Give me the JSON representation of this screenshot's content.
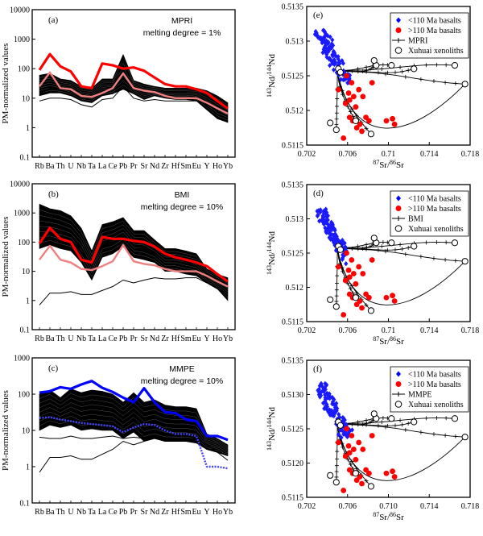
{
  "chart_data": [
    {
      "id": "a",
      "type": "line",
      "panel_label": "(a)",
      "annotation": [
        "MPRI",
        "melting degree = 1%"
      ],
      "ylabel": "PM-normalized values",
      "yscale": "log",
      "ylim": [
        0.1,
        10000
      ],
      "y_ticks": [
        "0.1",
        "1",
        "10",
        "100",
        "1000",
        "10000"
      ],
      "categories": [
        "Rb",
        "Ba",
        "Th",
        "U",
        "Nb",
        "Ta",
        "La",
        "Ce",
        "Pb",
        "Pr",
        "Sr",
        "Nd",
        "Zr",
        "Hf",
        "Sm",
        "Eu",
        "Y",
        "Ho",
        "Yb"
      ],
      "band": {
        "upper": [
          60,
          70,
          45,
          40,
          25,
          22,
          45,
          45,
          300,
          40,
          30,
          25,
          22,
          22,
          22,
          22,
          18,
          12,
          7
        ],
        "lower": [
          12,
          15,
          15,
          12,
          8,
          7,
          12,
          14,
          20,
          14,
          9,
          12,
          10,
          9,
          9,
          8,
          4,
          2,
          1.5
        ]
      },
      "model_lines": [
        [
          14,
          22,
          20,
          18,
          12,
          11,
          18,
          20,
          220,
          22,
          18,
          18,
          16,
          16,
          16,
          16,
          12,
          8,
          5
        ],
        [
          8,
          10,
          10,
          9,
          6,
          5,
          9,
          10,
          25,
          10,
          8,
          9,
          8,
          8,
          8,
          8,
          6,
          4,
          3
        ]
      ],
      "series": [
        {
          "color": "#ff0000",
          "values": [
            90,
            310,
            120,
            80,
            25,
            22,
            150,
            130,
            100,
            110,
            85,
            50,
            30,
            25,
            25,
            20,
            15,
            8,
            4.5
          ]
        },
        {
          "color": "#f08080",
          "values": [
            25,
            75,
            22,
            20,
            12,
            11,
            15,
            22,
            70,
            22,
            18,
            16,
            12,
            10,
            10,
            10,
            7,
            4.5,
            3
          ]
        }
      ]
    },
    {
      "id": "b",
      "type": "line",
      "panel_label": "(b)",
      "annotation": [
        "BMI",
        "melting degree = 10%"
      ],
      "ylabel": "PM-normalized values",
      "yscale": "log",
      "ylim": [
        0.1,
        10000
      ],
      "y_ticks": [
        "0.1",
        "1",
        "10",
        "100",
        "1000",
        "10000"
      ],
      "categories": [
        "Rb",
        "Ba",
        "Th",
        "U",
        "Nb",
        "Ta",
        "La",
        "Ce",
        "Pb",
        "Pr",
        "Sr",
        "Nd",
        "Zr",
        "Hf",
        "Sm",
        "Eu",
        "Y",
        "Ho",
        "Yb"
      ],
      "band": {
        "upper": [
          2000,
          1400,
          1200,
          800,
          300,
          50,
          400,
          500,
          700,
          250,
          250,
          120,
          60,
          60,
          50,
          40,
          12,
          8,
          6
        ],
        "lower": [
          60,
          80,
          60,
          50,
          20,
          5,
          30,
          40,
          70,
          30,
          25,
          20,
          10,
          10,
          8,
          7,
          4,
          2.5,
          1
        ]
      },
      "model_lines": [
        [
          0.7,
          1.8,
          1.8,
          2,
          1.6,
          1.6,
          2.2,
          3,
          5,
          4,
          5,
          6,
          5.5,
          5.5,
          6,
          6,
          4,
          2.5,
          1.5
        ],
        [
          300,
          260,
          220,
          180,
          50,
          15,
          80,
          100,
          160,
          60,
          60,
          40,
          22,
          22,
          20,
          18,
          8,
          5,
          3
        ]
      ],
      "series": [
        {
          "color": "#ff0000",
          "values": [
            90,
            310,
            130,
            100,
            25,
            20,
            150,
            130,
            130,
            110,
            100,
            70,
            40,
            30,
            25,
            20,
            15,
            8,
            4.5
          ]
        },
        {
          "color": "#f08080",
          "values": [
            25,
            75,
            25,
            20,
            12,
            11,
            15,
            22,
            80,
            22,
            18,
            16,
            12,
            10,
            10,
            10,
            7,
            4.5,
            3
          ]
        }
      ]
    },
    {
      "id": "c",
      "type": "line",
      "panel_label": "(c)",
      "annotation": [
        "MMPE",
        "melting degree = 10%"
      ],
      "ylabel": "PM-normalized values",
      "yscale": "log",
      "ylim": [
        0.1,
        1000
      ],
      "y_ticks": [
        "0.1",
        "1",
        "10",
        "100",
        "1000"
      ],
      "categories": [
        "Rb",
        "Ba",
        "Th",
        "U",
        "Nb",
        "Ta",
        "La",
        "Ce",
        "Pb",
        "Pr",
        "Sr",
        "Nd",
        "Zr",
        "Hf",
        "Sm",
        "Eu",
        "Y",
        "Ho",
        "Yb"
      ],
      "band": {
        "upper": [
          100,
          130,
          80,
          140,
          110,
          130,
          120,
          100,
          60,
          110,
          60,
          70,
          50,
          45,
          45,
          40,
          8,
          6,
          4
        ],
        "lower": [
          10,
          14,
          12,
          14,
          10,
          11,
          10,
          10,
          6,
          9,
          5,
          6,
          5,
          5,
          5,
          4.5,
          3,
          2.5,
          2
        ]
      },
      "model_lines": [
        [
          0.7,
          1.8,
          1.8,
          2,
          1.6,
          1.6,
          2.2,
          3,
          5,
          4,
          5,
          6,
          5.5,
          5.5,
          6,
          6,
          4,
          2.5,
          1.5
        ],
        [
          6.5,
          6,
          6,
          7,
          6,
          6,
          6.5,
          7,
          6,
          6.5,
          6,
          6,
          5,
          5,
          5,
          4.5,
          3,
          2.5,
          2
        ]
      ],
      "series": [
        {
          "color": "#0000ff",
          "style": "solid",
          "values": [
            110,
            120,
            155,
            140,
            185,
            230,
            150,
            115,
            80,
            60,
            145,
            60,
            32,
            30,
            20,
            18,
            7,
            7,
            5.5
          ]
        },
        {
          "color": "#4444ff",
          "style": "dashed",
          "values": [
            22,
            23,
            20,
            18,
            16,
            15,
            14,
            13,
            9,
            12,
            15,
            14,
            10,
            8,
            8,
            7,
            1,
            1,
            0.9
          ]
        }
      ]
    },
    {
      "id": "e",
      "type": "scatter",
      "panel_label": "(e)",
      "xlabel": "87Sr/86Sr",
      "ylabel": "143Nd/144Nd",
      "xlim": [
        0.702,
        0.718
      ],
      "ylim": [
        0.5115,
        0.5135
      ],
      "x_ticks": [
        "0.702",
        "0.706",
        "0.71",
        "0.714",
        "0.718"
      ],
      "y_ticks": [
        "0.5115",
        "0.512",
        "0.5125",
        "0.513",
        "0.5135"
      ],
      "legend_position": "top-right",
      "legend": [
        {
          "marker": "diamond",
          "color": "#0000ff",
          "label": "<110 Ma basalts"
        },
        {
          "marker": "circle-filled",
          "color": "#ff0000",
          "label": ">110 Ma basalts"
        },
        {
          "marker": "plus-line",
          "color": "#000000",
          "label": "MPRI"
        },
        {
          "marker": "circle-open",
          "color": "#000000",
          "label": "Xuhuai xenoliths"
        }
      ]
    },
    {
      "id": "d",
      "type": "scatter",
      "panel_label": "(d)",
      "xlabel": "87Sr/86Sr",
      "ylabel": "143Nd/144Nd",
      "xlim": [
        0.702,
        0.718
      ],
      "ylim": [
        0.5115,
        0.5135
      ],
      "x_ticks": [
        "0.702",
        "0.706",
        "0.71",
        "0.714",
        "0.718"
      ],
      "y_ticks": [
        "0.5115",
        "0.512",
        "0.5125",
        "0.513",
        "0.5135"
      ],
      "legend_position": "top-right",
      "legend": [
        {
          "marker": "diamond",
          "color": "#0000ff",
          "label": "<110 Ma basalts"
        },
        {
          "marker": "circle-filled",
          "color": "#ff0000",
          "label": ">110 Ma basalts"
        },
        {
          "marker": "plus-line",
          "color": "#000000",
          "label": "BMI"
        },
        {
          "marker": "circle-open",
          "color": "#000000",
          "label": "Xuhuai xenoliths"
        }
      ]
    },
    {
      "id": "f",
      "type": "scatter",
      "panel_label": "(f)",
      "xlabel": "87Sr/86Sr",
      "ylabel": "143Nd/144Nd",
      "xlim": [
        0.702,
        0.718
      ],
      "ylim": [
        0.5115,
        0.5135
      ],
      "x_ticks": [
        "0.702",
        "0.706",
        "0.710",
        "0.714",
        "0.718"
      ],
      "y_ticks": [
        "0.5115",
        "0.5120",
        "0.5125",
        "0.5130",
        "0.5135"
      ],
      "legend_position": "top-right",
      "legend": [
        {
          "marker": "diamond",
          "color": "#0000ff",
          "label": "<110 Ma basalts"
        },
        {
          "marker": "circle-filled",
          "color": "#ff0000",
          "label": ">110 Ma basalts"
        },
        {
          "marker": "plus-line",
          "color": "#000000",
          "label": "MMPE"
        },
        {
          "marker": "circle-open",
          "color": "#000000",
          "label": "Xuhuai xenoliths"
        }
      ]
    }
  ],
  "isotope_points": {
    "xenoliths": [
      [
        0.7051,
        0.5126
      ],
      [
        0.7053,
        0.51255
      ],
      [
        0.7088,
        0.51265
      ],
      [
        0.7103,
        0.51265
      ],
      [
        0.7125,
        0.5126
      ],
      [
        0.7165,
        0.51265
      ],
      [
        0.7175,
        0.51238
      ],
      [
        0.7043,
        0.51182
      ],
      [
        0.7049,
        0.51172
      ],
      [
        0.7083,
        0.51166
      ],
      [
        0.7068,
        0.51185
      ],
      [
        0.7086,
        0.51272
      ]
    ],
    "red": [
      [
        0.7051,
        0.5123
      ],
      [
        0.7058,
        0.5121
      ],
      [
        0.7062,
        0.5119
      ],
      [
        0.7066,
        0.5122
      ],
      [
        0.7068,
        0.51205
      ],
      [
        0.7072,
        0.5118
      ],
      [
        0.7065,
        0.51185
      ],
      [
        0.7075,
        0.5122
      ],
      [
        0.7081,
        0.51185
      ],
      [
        0.7098,
        0.51185
      ],
      [
        0.7104,
        0.51188
      ],
      [
        0.7106,
        0.5118
      ],
      [
        0.7064,
        0.5124
      ],
      [
        0.7071,
        0.5123
      ],
      [
        0.7059,
        0.5125
      ],
      [
        0.7078,
        0.5119
      ],
      [
        0.7084,
        0.5124
      ],
      [
        0.7062,
        0.51215
      ],
      [
        0.7069,
        0.51175
      ],
      [
        0.7074,
        0.5117
      ],
      [
        0.7056,
        0.5116
      ],
      [
        0.7061,
        0.51225
      ]
    ]
  },
  "pm_ytitle": "PM-normalized values",
  "iso_xtitle": "87Sr/86Sr",
  "iso_ytitle": "143Nd/144Nd"
}
